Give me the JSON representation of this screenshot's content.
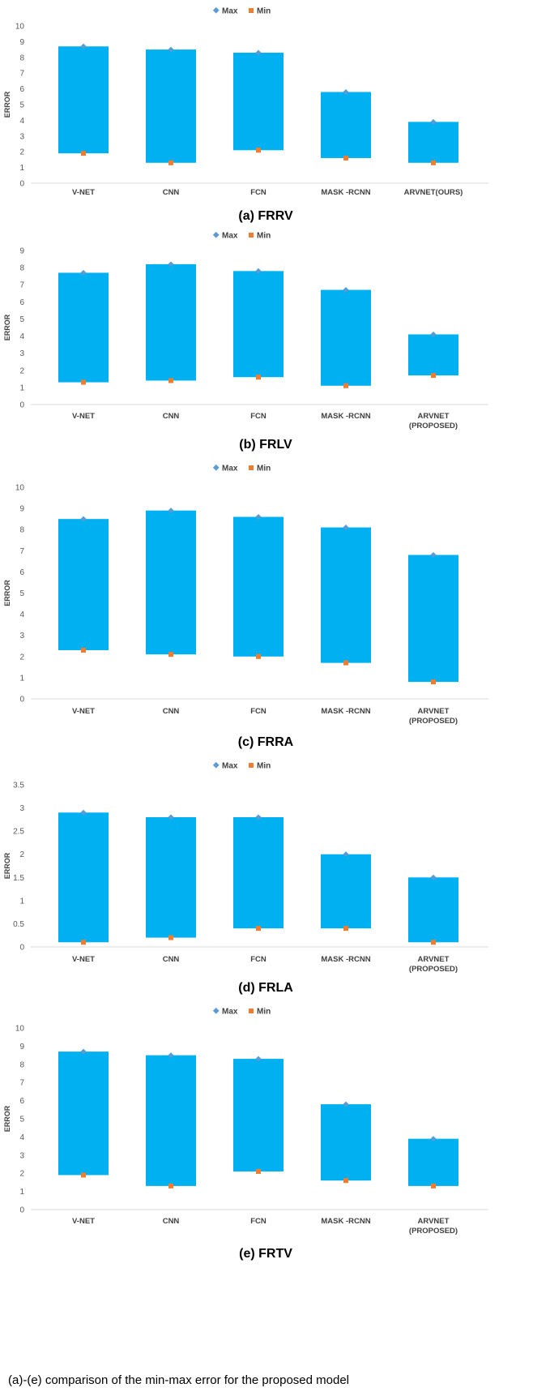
{
  "colors": {
    "bar": "#00b0f0",
    "max_marker": "#5b9bd5",
    "min_marker": "#ed7d31",
    "axis": "#d9d9d9",
    "text": "#404040"
  },
  "legend": {
    "max": "Max",
    "min": "Min"
  },
  "bottom_text": "(a)-(e) comparison of the min-max error for the proposed model",
  "chart_data": [
    {
      "type": "bar",
      "caption": "(a) FRRV",
      "ylabel": "ERROR",
      "ylim": [
        0,
        10
      ],
      "yticks": [
        0,
        1,
        2,
        3,
        4,
        5,
        6,
        7,
        8,
        9,
        10
      ],
      "categories": [
        [
          "V-NET"
        ],
        [
          "CNN"
        ],
        [
          "FCN"
        ],
        [
          "MASK -RCNN"
        ],
        [
          "ARVNET(OURS)"
        ]
      ],
      "series": [
        {
          "name": "Max",
          "values": [
            8.7,
            8.5,
            8.3,
            5.8,
            3.9
          ]
        },
        {
          "name": "Min",
          "values": [
            1.9,
            1.3,
            2.1,
            1.6,
            1.3
          ]
        }
      ]
    },
    {
      "type": "bar",
      "caption": "(b) FRLV",
      "ylabel": "ERROR",
      "ylim": [
        0,
        9
      ],
      "yticks": [
        0,
        1,
        2,
        3,
        4,
        5,
        6,
        7,
        8,
        9
      ],
      "categories": [
        [
          "V-NET"
        ],
        [
          "CNN"
        ],
        [
          "FCN"
        ],
        [
          "MASK -RCNN"
        ],
        [
          "ARVNET",
          "(PROPOSED)"
        ]
      ],
      "series": [
        {
          "name": "Max",
          "values": [
            7.7,
            8.2,
            7.8,
            6.7,
            4.1
          ]
        },
        {
          "name": "Min",
          "values": [
            1.3,
            1.4,
            1.6,
            1.1,
            1.7
          ]
        }
      ]
    },
    {
      "type": "bar",
      "caption": "(c) FRRA",
      "ylabel": "ERROR",
      "ylim": [
        0,
        10
      ],
      "yticks": [
        0,
        1,
        2,
        3,
        4,
        5,
        6,
        7,
        8,
        9,
        10
      ],
      "categories": [
        [
          "V-NET"
        ],
        [
          "CNN"
        ],
        [
          "FCN"
        ],
        [
          "MASK -RCNN"
        ],
        [
          "ARVNET",
          "(PROPOSED)"
        ]
      ],
      "series": [
        {
          "name": "Max",
          "values": [
            8.5,
            8.9,
            8.6,
            8.1,
            6.8
          ]
        },
        {
          "name": "Min",
          "values": [
            2.3,
            2.1,
            2.0,
            1.7,
            0.8
          ]
        }
      ]
    },
    {
      "type": "bar",
      "caption": "(d) FRLA",
      "ylabel": "ERROR",
      "ylim": [
        0,
        3.5
      ],
      "yticks": [
        0,
        0.5,
        1,
        1.5,
        2,
        2.5,
        3,
        3.5
      ],
      "categories": [
        [
          "V-NET"
        ],
        [
          "CNN"
        ],
        [
          "FCN"
        ],
        [
          "MASK -RCNN"
        ],
        [
          "ARVNET",
          "(PROPOSED)"
        ]
      ],
      "series": [
        {
          "name": "Max",
          "values": [
            2.9,
            2.8,
            2.8,
            2.0,
            1.5
          ]
        },
        {
          "name": "Min",
          "values": [
            0.1,
            0.2,
            0.4,
            0.4,
            0.1
          ]
        }
      ]
    },
    {
      "type": "bar",
      "caption": "(e) FRTV",
      "ylabel": "ERROR",
      "ylim": [
        0,
        10
      ],
      "yticks": [
        0,
        1,
        2,
        3,
        4,
        5,
        6,
        7,
        8,
        9,
        10
      ],
      "categories": [
        [
          "V-NET"
        ],
        [
          "CNN"
        ],
        [
          "FCN"
        ],
        [
          "MASK -RCNN"
        ],
        [
          "ARVNET",
          "(PROPOSED)"
        ]
      ],
      "series": [
        {
          "name": "Max",
          "values": [
            8.7,
            8.5,
            8.3,
            5.8,
            3.9
          ]
        },
        {
          "name": "Min",
          "values": [
            1.9,
            1.3,
            2.1,
            1.6,
            1.3
          ]
        }
      ]
    }
  ]
}
